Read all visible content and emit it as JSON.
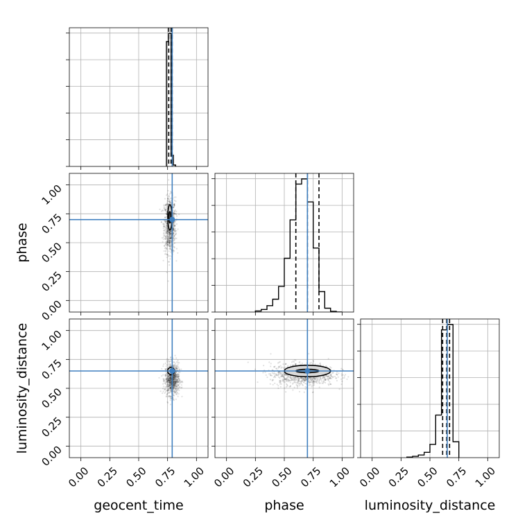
{
  "chart_data": {
    "type": "corner",
    "parameters": [
      "geocent_time",
      "phase",
      "luminosity_distance"
    ],
    "axis_range": [
      -0.1,
      1.1
    ],
    "ticks": [
      0.0,
      0.25,
      0.5,
      0.75,
      1.0
    ],
    "tick_labels": [
      "0.00",
      "0.25",
      "0.50",
      "0.75",
      "1.00"
    ],
    "grid": true,
    "colors": {
      "truth": "#3f7fbf",
      "hist": "#000000",
      "grid": "#b0b0b0",
      "points": "#000000"
    },
    "truths": {
      "geocent_time": 0.79,
      "phase": 0.7,
      "luminosity_distance": 0.65
    },
    "quantiles": {
      "geocent_time": [
        0.76,
        0.78,
        0.79
      ],
      "phase": [
        0.6,
        0.7,
        0.8
      ],
      "luminosity_distance": [
        0.61,
        0.645,
        0.67
      ]
    },
    "histograms": {
      "geocent_time": {
        "bin_edges": [
          0.74,
          0.76,
          0.78,
          0.8,
          0.82
        ],
        "counts": [
          45,
          48,
          4,
          0.5
        ]
      },
      "phase": {
        "bin_edges": [
          0.25,
          0.3,
          0.35,
          0.4,
          0.45,
          0.5,
          0.55,
          0.6,
          0.65,
          0.7,
          0.75,
          0.8,
          0.85,
          0.9,
          0.95,
          1.0
        ],
        "counts": [
          0.4,
          1,
          2.5,
          5,
          10,
          21,
          36,
          50,
          52,
          43,
          25,
          8,
          1.5,
          0.3,
          0
        ]
      },
      "luminosity_distance": {
        "bin_edges": [
          0.3,
          0.35,
          0.4,
          0.45,
          0.5,
          0.55,
          0.6,
          0.65,
          0.7,
          0.75
        ],
        "counts": [
          0.2,
          0.5,
          1,
          2,
          5,
          16,
          48,
          50,
          6
        ]
      }
    },
    "scatter_clouds": [
      {
        "x": "geocent_time",
        "y": "phase",
        "cx": 0.77,
        "cy": 0.65,
        "sx": 0.025,
        "sy": 0.12
      },
      {
        "x": "geocent_time",
        "y": "luminosity_distance",
        "cx": 0.79,
        "cy": 0.58,
        "sx": 0.03,
        "sy": 0.07
      },
      {
        "x": "phase",
        "y": "luminosity_distance",
        "cx": 0.66,
        "cy": 0.62,
        "sx": 0.14,
        "sy": 0.05
      }
    ],
    "contours": [
      {
        "x": "geocent_time",
        "y": "phase",
        "cx": 0.77,
        "cy": 0.72,
        "rx": [
          0.008,
          0.018
        ],
        "ry": [
          0.05,
          0.11
        ]
      },
      {
        "x": "geocent_time",
        "y": "luminosity_distance",
        "cx": 0.78,
        "cy": 0.65,
        "rx": [
          0.01,
          0.03
        ],
        "ry": [
          0.01,
          0.03
        ]
      },
      {
        "x": "phase",
        "y": "luminosity_distance",
        "cx": 0.7,
        "cy": 0.65,
        "rx": [
          0.1,
          0.2
        ],
        "ry": [
          0.015,
          0.05
        ]
      }
    ]
  }
}
